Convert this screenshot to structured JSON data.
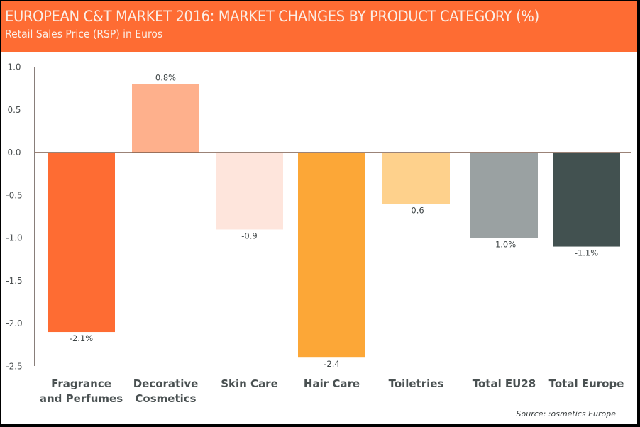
{
  "header": {
    "title": "EUROPEAN C&T MARKET 2016: MARKET CHANGES BY PRODUCT CATEGORY (%)",
    "subtitle": "Retail Sales Price (RSP) in Euros"
  },
  "source": "Source: :osmetics Europe",
  "chart_data": {
    "type": "bar",
    "title": "EUROPEAN C&T MARKET 2016: MARKET CHANGES BY PRODUCT CATEGORY (%)",
    "subtitle": "Retail Sales Price (RSP) in Euros",
    "xlabel": "",
    "ylabel": "",
    "ylim": [
      -2.5,
      1.0
    ],
    "yticks": [
      1.0,
      0.5,
      0.0,
      -0.5,
      -1.0,
      -1.5,
      -2.0,
      -2.5
    ],
    "ytick_labels": [
      "1.0",
      "0.5",
      "0.0",
      "-0.5",
      "-1.0",
      "-1.5",
      "-2.0",
      "-2.5"
    ],
    "grid": false,
    "legend": "none",
    "categories": [
      [
        "Fragrance",
        "and Perfumes"
      ],
      [
        "Decorative",
        "Cosmetics"
      ],
      [
        "Skin Care"
      ],
      [
        "Hair Care"
      ],
      [
        "Toiletries"
      ],
      [
        "Total EU28"
      ],
      [
        "Total Europe"
      ]
    ],
    "values": [
      -2.1,
      0.8,
      -0.9,
      -2.4,
      -0.6,
      -1.0,
      -1.1
    ],
    "data_labels": [
      "-2.1%",
      "0.8%",
      "-0.9",
      "-2.4",
      "-0.6",
      "-1.0%",
      "-1.1%"
    ],
    "colors": [
      "#fe6c33",
      "#feb08c",
      "#fee5dc",
      "#fca737",
      "#fed18c",
      "#9aa1a2",
      "#425150"
    ],
    "source": "Source: :osmetics Europe"
  }
}
